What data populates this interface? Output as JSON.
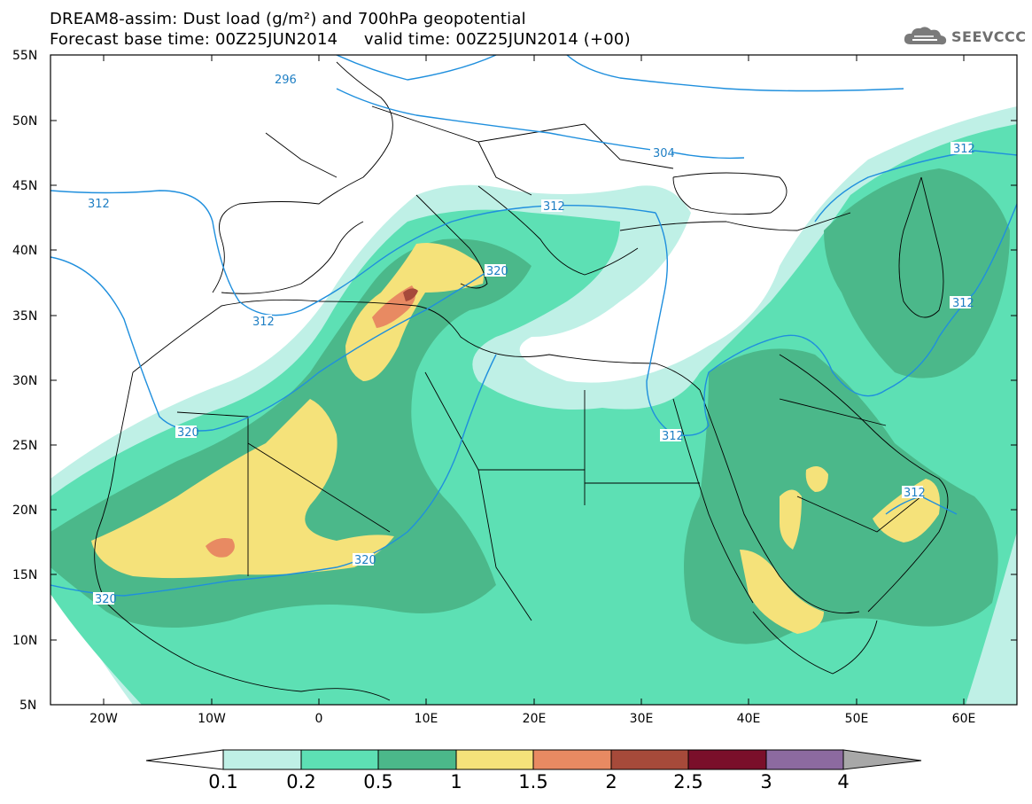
{
  "title": {
    "line1": "DREAM8-assim: Dust load (g/m²) and 700hPa geopotential",
    "line2": "Forecast base time: 00Z25JUN2014     valid time: 00Z25JUN2014 (+00)"
  },
  "logo": {
    "text": "SEEVCCC",
    "icon": "cloud-logo-icon"
  },
  "axes": {
    "lat_labels": [
      "55N",
      "50N",
      "45N",
      "40N",
      "35N",
      "30N",
      "25N",
      "20N",
      "15N",
      "10N",
      "5N"
    ],
    "lon_labels": [
      "20W",
      "10W",
      "0",
      "10E",
      "20E",
      "30E",
      "40E",
      "50E",
      "60E"
    ]
  },
  "contour_labels": [
    "296",
    "304",
    "312",
    "312",
    "312",
    "312",
    "312",
    "312",
    "320",
    "320",
    "320",
    "320"
  ],
  "colorbar": {
    "ticks": [
      "0.1",
      "0.2",
      "0.5",
      "1",
      "1.5",
      "2",
      "2.5",
      "3",
      "4"
    ],
    "colors": [
      "#ffffff",
      "#bff0e6",
      "#5de0b4",
      "#4bb88a",
      "#f5e27a",
      "#e88a62",
      "#a64a3a",
      "#7a0f2a",
      "#8c6aa0",
      "#a8a8a8"
    ]
  },
  "map_colors": {
    "contour_line": "#1f8fdd",
    "coastline": "#000000"
  }
}
